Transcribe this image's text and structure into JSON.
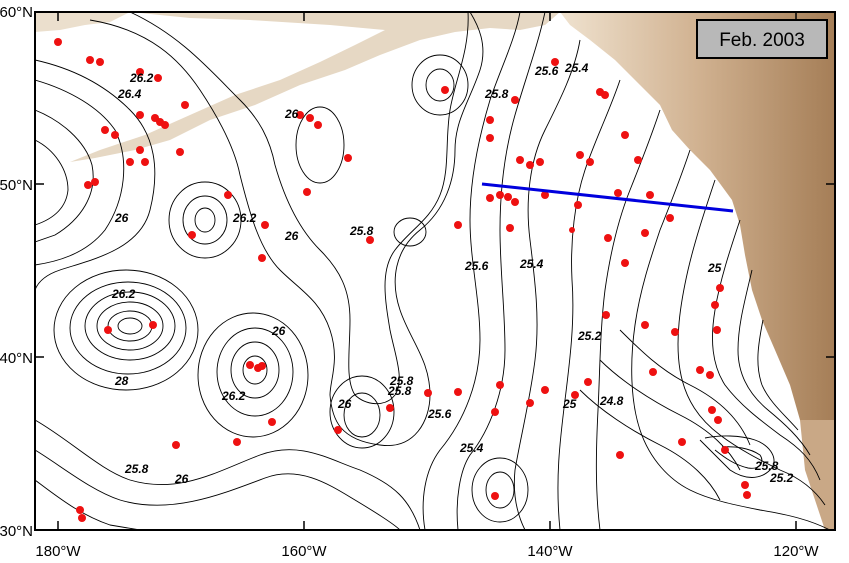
{
  "title_box": "Feb. 2003",
  "lat_ticks": [
    "60°N",
    "50°N",
    "40°N",
    "30°N"
  ],
  "lon_ticks": [
    "180°W",
    "160°W",
    "140°W",
    "120°W"
  ],
  "contour_labels": [
    "26.2",
    "26.4",
    "26",
    "25.8",
    "25.8",
    "25.6",
    "25.4",
    "26",
    "26.2",
    "25.8",
    "25.6",
    "25.4",
    "25.2",
    "25",
    "26.2",
    "28",
    "26",
    "26",
    "25.8",
    "26.2",
    "26",
    "25.8",
    "25.6",
    "25.4",
    "25",
    "24.8",
    "26",
    "25.8",
    "25.2"
  ],
  "colors": {
    "station": "#ee1111",
    "section_line": "#0000dd",
    "land_light": "#e8d9c5",
    "land_dark": "#a9825a"
  },
  "section_line_label": ""
}
